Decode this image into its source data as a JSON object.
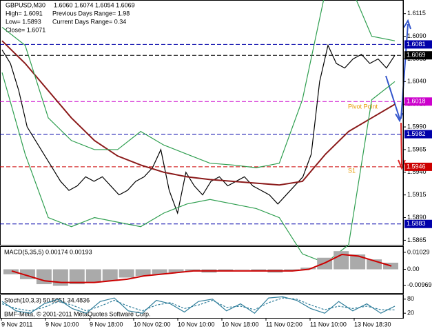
{
  "chart_data": [
    {
      "type": "line",
      "title": "GBPUSD,M30",
      "quote": "1.6060 1.6074 1.6054 1.6069",
      "info": [
        "High= 1.6091",
        "Previous Days Range= 1.98",
        "Low= 1.5893",
        "Current Days Range= 0.34",
        "Close= 1.6071"
      ],
      "ylim": [
        1.586,
        1.613
      ],
      "yticks": [
        1.6115,
        {
          "value": 1.609,
          "label": "1.6090"
        },
        1.6065,
        {
          "value": 1.604,
          "label": "1.6040"
        },
        1.6015,
        {
          "value": 1.599,
          "label": "1.5990"
        },
        1.5965,
        {
          "value": 1.594,
          "label": "1.5940"
        },
        1.5915,
        {
          "value": 1.589,
          "label": "1.5890"
        },
        1.5865
      ],
      "series": [
        {
          "color": "#000000",
          "values": [
            1.6075,
            1.606,
            1.603,
            1.599,
            1.5975,
            1.596,
            1.5945,
            1.593,
            1.592,
            1.5925,
            1.5935,
            1.593,
            1.5935,
            1.5925,
            1.5915,
            1.592,
            1.593,
            1.5935,
            1.5945,
            1.5965,
            1.592,
            1.5895,
            1.594,
            1.5925,
            1.5915,
            1.593,
            1.5935,
            1.5925,
            1.593,
            1.5935,
            1.5925,
            1.592,
            1.5915,
            1.5905,
            1.5915,
            1.5925,
            1.5935,
            1.596,
            1.604,
            1.608,
            1.606,
            1.6055,
            1.6065,
            1.607,
            1.606,
            1.6065,
            1.6055,
            1.6069
          ]
        },
        {
          "color": "#8b1a1a",
          "values": [
            1.6085,
            1.606,
            1.603,
            1.6,
            1.5975,
            1.5958,
            1.5948,
            1.594,
            1.5935,
            1.5932,
            1.593,
            1.5928,
            1.5926,
            1.593,
            1.596,
            1.5985,
            1.6,
            1.6015
          ]
        },
        {
          "color": "#2e9e4f",
          "values": [
            1.61,
            1.608,
            1.6,
            1.5975,
            1.5965,
            1.5965,
            1.5985,
            1.597,
            1.596,
            1.595,
            1.5948,
            1.5945,
            1.595,
            1.602,
            1.614,
            1.615,
            1.609,
            1.6085
          ]
        },
        {
          "color": "#2e9e4f",
          "values": [
            1.605,
            1.596,
            1.589,
            1.588,
            1.589,
            1.5885,
            1.588,
            1.5895,
            1.5905,
            1.591,
            1.5905,
            1.59,
            1.589,
            1.585,
            1.584,
            1.586,
            1.602,
            1.604
          ]
        }
      ],
      "levels": [
        {
          "value": 1.6081,
          "color": "#0000aa"
        },
        {
          "value": 1.6069,
          "color": "#000000"
        },
        {
          "value": 1.6018,
          "color": "#cc00cc"
        },
        {
          "value": 1.5982,
          "color": "#0000aa"
        },
        {
          "value": 1.5946,
          "color": "#cc0000"
        },
        {
          "value": 1.5883,
          "color": "#0000aa"
        }
      ],
      "annotations": [
        "Pivot Point",
        "S1"
      ]
    },
    {
      "type": "bar",
      "title": "MACD(5,35,5) 0.00174 0.00193",
      "ylim": [
        -0.0144,
        0.014
      ],
      "yticks": [
        0.01029,
        {
          "value": 0,
          "label": "0.00"
        },
        -0.00969
      ],
      "values": [
        -0.003,
        -0.006,
        -0.009,
        -0.01,
        -0.009,
        -0.008,
        -0.007,
        -0.005,
        -0.004,
        -0.003,
        -0.002,
        -0.001,
        -0.002,
        -0.001,
        0.0,
        -0.001,
        -0.002,
        -0.001,
        0.001,
        0.007,
        0.011,
        0.009,
        0.006,
        0.004
      ],
      "color": "#aaaaaa",
      "signal": {
        "color": "#cc0000",
        "values": [
          -0.001,
          -0.004,
          -0.007,
          -0.008,
          -0.008,
          -0.008,
          -0.007,
          -0.006,
          -0.004,
          -0.003,
          -0.002,
          -0.001,
          -0.001,
          -0.001,
          -0.001,
          -0.001,
          -0.001,
          -0.001,
          0.0,
          0.004,
          0.009,
          0.008,
          0.005,
          0.002
        ]
      }
    },
    {
      "type": "line",
      "title": "Stoch(10,3,3) 50.5051 34.4836",
      "ylim": [
        0,
        100
      ],
      "yticks": [
        80,
        20
      ],
      "series": [
        {
          "color": "#2e7d9a",
          "values": [
            70,
            30,
            20,
            60,
            80,
            40,
            20,
            70,
            85,
            30,
            20,
            75,
            60,
            25,
            70,
            80,
            30,
            60,
            20,
            85,
            90,
            75,
            40,
            20,
            70,
            30,
            60,
            20,
            50
          ]
        },
        {
          "color": "#2e7d9a",
          "dash": true,
          "values": [
            60,
            40,
            30,
            45,
            70,
            55,
            30,
            50,
            75,
            50,
            30,
            55,
            65,
            40,
            55,
            75,
            45,
            50,
            35,
            65,
            85,
            80,
            55,
            35,
            50,
            40,
            50,
            35,
            34
          ]
        }
      ],
      "time_labels": [
        "9 Nov 2011",
        "9 Nov 10:00",
        "9 Nov 18:00",
        "10 Nov 02:00",
        "10 Nov 10:00",
        "10 Nov 18:00",
        "11 Nov 02:00",
        "11 Nov 10:00",
        "13 Nov 18:30"
      ]
    }
  ],
  "footer": "BMF-Meta, © 2001-2011 MetaQuotes Software Corp."
}
